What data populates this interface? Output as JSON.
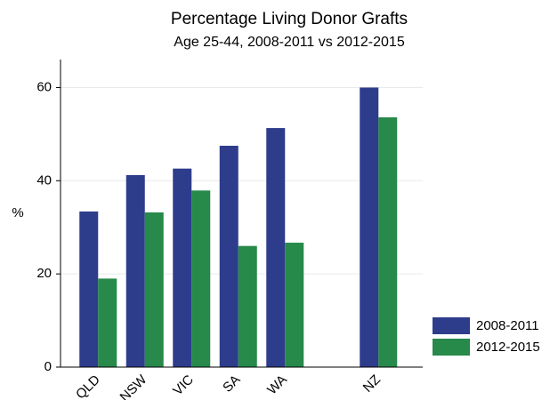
{
  "chart_data": {
    "type": "bar",
    "title": "Percentage Living Donor Grafts",
    "subtitle": "Age 25-44, 2008-2011 vs 2012-2015",
    "y_label": "%",
    "categories": [
      "QLD",
      "NSW",
      "VIC",
      "SA",
      "WA",
      null,
      "NZ"
    ],
    "series": [
      {
        "name": "2008-2011",
        "color": "#2e3c8c",
        "values": [
          33.4,
          41.2,
          42.6,
          47.5,
          51.3,
          null,
          60
        ]
      },
      {
        "name": "2012-2015",
        "color": "#27894a",
        "values": [
          19,
          33.2,
          37.9,
          26,
          26.7,
          null,
          53.6
        ]
      }
    ],
    "ylim": [
      0,
      66
    ],
    "yticks": [
      0,
      20,
      40,
      60
    ],
    "grid": true,
    "legend": "bottom-right"
  }
}
